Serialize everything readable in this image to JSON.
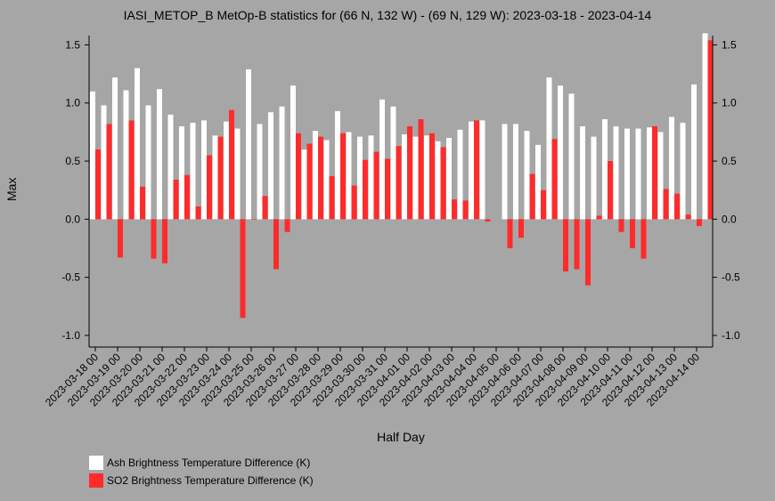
{
  "colors": {
    "background": "#a6a6a6",
    "ash": "#ffffff",
    "so2": "#ff2b2b",
    "axis": "#000000"
  },
  "chart_data": {
    "type": "bar",
    "title": "IASI_METOP_B MetOp-B statistics for (66 N, 132 W) - (69 N, 129 W): 2023-03-18 - 2023-04-14",
    "xlabel": "Half Day",
    "ylabel": "Max",
    "ylim": [
      -1.1,
      1.58
    ],
    "yticks": [
      "-1.0",
      "-0.5",
      "0.0",
      "0.5",
      "1.0",
      "1.5"
    ],
    "ytick_values": [
      -1.0,
      -0.5,
      0.0,
      0.5,
      1.0,
      1.5
    ],
    "xtick_labels": [
      "2023-03-18 00",
      "2023-03-19 00",
      "2023-03-20 00",
      "2023-03-21 00",
      "2023-03-22 00",
      "2023-03-23 00",
      "2023-03-24 00",
      "2023-03-25 00",
      "2023-03-26 00",
      "2023-03-27 00",
      "2023-03-28 00",
      "2023-03-29 00",
      "2023-03-30 00",
      "2023-03-31 00",
      "2023-04-01 00",
      "2023-04-02 00",
      "2023-04-03 00",
      "2023-04-04 00",
      "2023-04-05 00",
      "2023-04-06 00",
      "2023-04-07 00",
      "2023-04-08 00",
      "2023-04-09 00",
      "2023-04-10 00",
      "2023-04-11 00",
      "2023-04-12 00",
      "2023-04-13 00",
      "2023-04-14 00"
    ],
    "legend": "bottom-left",
    "series": [
      {
        "name": "Ash Brightness Temperature Difference (K)",
        "values": [
          1.1,
          0.98,
          1.22,
          1.11,
          1.3,
          0.98,
          1.12,
          0.9,
          0.8,
          0.83,
          0.85,
          0.72,
          0.84,
          0.78,
          1.29,
          0.82,
          0.92,
          0.97,
          1.15,
          0.6,
          0.76,
          0.68,
          0.93,
          0.75,
          0.71,
          0.72,
          1.03,
          0.97,
          0.73,
          0.71,
          0.72,
          0.67,
          0.7,
          0.77,
          0.84,
          0.85,
          null,
          0.82,
          0.82,
          0.76,
          0.64,
          1.22,
          1.15,
          1.08,
          0.8,
          0.71,
          0.86,
          0.8,
          0.78,
          0.78,
          0.79,
          0.75,
          0.88,
          0.83,
          1.16,
          1.6
        ]
      },
      {
        "name": "SO2 Brightness Temperature Difference (K)",
        "values": [
          0.6,
          0.82,
          -0.33,
          0.85,
          0.28,
          -0.34,
          -0.38,
          0.34,
          0.38,
          0.11,
          0.55,
          0.71,
          0.94,
          -0.85,
          0.0,
          0.2,
          -0.43,
          -0.11,
          0.74,
          0.65,
          0.71,
          0.37,
          0.74,
          0.29,
          0.51,
          0.58,
          0.52,
          0.63,
          0.8,
          0.86,
          0.74,
          0.62,
          0.17,
          0.16,
          0.85,
          -0.02,
          null,
          -0.25,
          -0.16,
          0.39,
          0.25,
          0.69,
          -0.45,
          -0.43,
          -0.57,
          0.03,
          0.5,
          -0.11,
          -0.25,
          -0.34,
          0.8,
          0.26,
          0.22,
          0.04,
          -0.06,
          1.54
        ]
      }
    ]
  }
}
